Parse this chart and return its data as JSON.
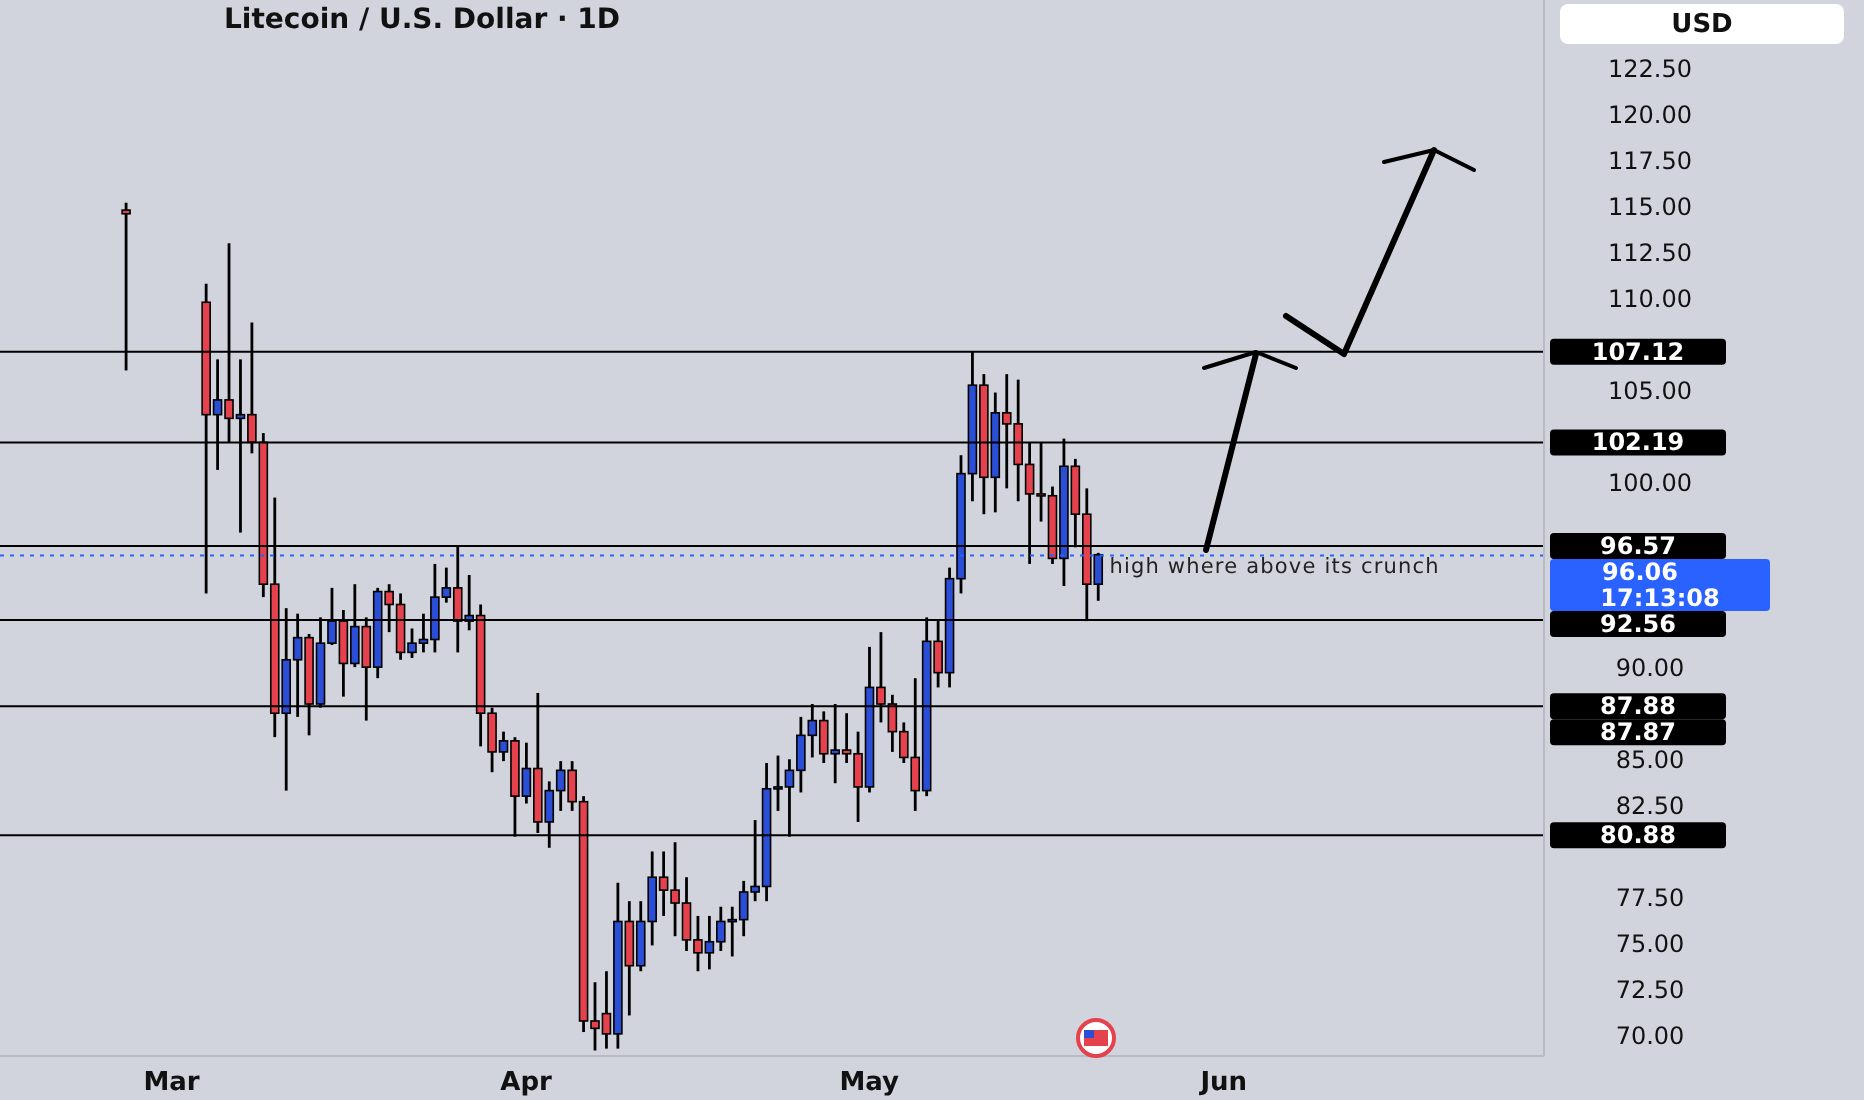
{
  "chart_data": {
    "type": "candlestick",
    "title": "Litecoin / U.S. Dollar · 1D",
    "x": [
      "--02-25",
      "--03-04",
      "--03-05",
      "--03-06",
      "--03-07",
      "--03-08",
      "--03-09",
      "--03-10",
      "--03-11",
      "--03-12",
      "--03-13",
      "--03-14",
      "--03-15",
      "--03-16",
      "--03-17",
      "--03-18",
      "--03-19",
      "--03-20",
      "--03-21",
      "--03-22",
      "--03-23",
      "--03-24",
      "--03-25",
      "--03-26",
      "--03-27",
      "--03-28",
      "--03-29",
      "--03-30",
      "--03-31",
      "--04-01",
      "--04-02",
      "--04-03",
      "--04-04",
      "--04-05",
      "--04-06",
      "--04-07",
      "--04-08",
      "--04-09",
      "--04-10",
      "--04-11",
      "--04-12",
      "--04-13",
      "--04-14",
      "--04-15",
      "--04-16",
      "--04-17",
      "--04-18",
      "--04-19",
      "--04-20",
      "--04-21",
      "--04-22",
      "--04-23",
      "--04-24",
      "--04-25",
      "--04-26",
      "--04-27",
      "--04-28",
      "--04-29",
      "--04-30",
      "--05-01",
      "--05-02",
      "--05-03",
      "--05-04",
      "--05-05",
      "--05-06",
      "--05-07",
      "--05-08",
      "--05-09",
      "--05-10",
      "--05-11",
      "--05-12",
      "--05-13",
      "--05-14",
      "--05-15",
      "--05-16",
      "--05-17",
      "--05-18",
      "--05-19",
      "--05-20",
      "--05-21"
    ],
    "ohlc": [
      [
        114.8,
        115.2,
        106.1,
        114.6
      ],
      [
        109.8,
        110.8,
        94.0,
        103.7
      ],
      [
        103.7,
        106.7,
        100.7,
        104.5
      ],
      [
        104.5,
        113.0,
        102.2,
        103.5
      ],
      [
        103.5,
        106.7,
        97.3,
        103.7
      ],
      [
        103.7,
        108.7,
        101.6,
        102.2
      ],
      [
        102.2,
        102.7,
        93.8,
        94.5
      ],
      [
        94.5,
        99.2,
        86.2,
        87.5
      ],
      [
        87.5,
        93.2,
        83.3,
        90.4
      ],
      [
        90.4,
        92.9,
        87.3,
        91.6
      ],
      [
        91.6,
        91.8,
        86.3,
        88.0
      ],
      [
        88.0,
        92.7,
        87.8,
        91.3
      ],
      [
        91.3,
        94.3,
        91.2,
        92.5
      ],
      [
        92.5,
        93.1,
        88.4,
        90.2
      ],
      [
        90.2,
        94.5,
        90.0,
        92.2
      ],
      [
        92.2,
        92.7,
        87.1,
        90.0
      ],
      [
        90.0,
        94.3,
        89.4,
        94.1
      ],
      [
        94.1,
        94.5,
        91.9,
        93.4
      ],
      [
        93.4,
        94.0,
        90.4,
        90.8
      ],
      [
        90.8,
        92.1,
        90.5,
        91.3
      ],
      [
        91.3,
        92.9,
        90.8,
        91.5
      ],
      [
        91.5,
        95.6,
        90.8,
        93.8
      ],
      [
        93.8,
        95.4,
        93.5,
        94.3
      ],
      [
        94.3,
        96.6,
        90.8,
        92.5
      ],
      [
        92.5,
        95.0,
        92.0,
        92.8
      ],
      [
        92.8,
        93.4,
        85.7,
        87.5
      ],
      [
        87.5,
        87.8,
        84.3,
        85.4
      ],
      [
        85.4,
        86.5,
        84.9,
        86.0
      ],
      [
        86.0,
        86.2,
        80.8,
        83.0
      ],
      [
        83.0,
        85.9,
        82.6,
        84.5
      ],
      [
        84.5,
        88.6,
        81.0,
        81.6
      ],
      [
        81.6,
        83.8,
        80.2,
        83.3
      ],
      [
        83.3,
        84.9,
        82.2,
        84.4
      ],
      [
        84.4,
        84.9,
        82.2,
        82.7
      ],
      [
        82.7,
        83.0,
        70.2,
        70.8
      ],
      [
        70.8,
        72.9,
        69.2,
        70.4
      ],
      [
        71.2,
        73.5,
        69.3,
        70.1
      ],
      [
        70.1,
        78.3,
        69.3,
        76.2
      ],
      [
        76.2,
        77.3,
        71.1,
        73.8
      ],
      [
        73.8,
        77.3,
        73.5,
        76.2
      ],
      [
        76.2,
        80.0,
        74.9,
        78.6
      ],
      [
        78.6,
        80.0,
        76.5,
        77.9
      ],
      [
        77.9,
        80.5,
        75.4,
        77.2
      ],
      [
        77.2,
        78.6,
        74.6,
        75.2
      ],
      [
        75.2,
        76.5,
        73.5,
        74.5
      ],
      [
        74.5,
        76.5,
        73.6,
        75.1
      ],
      [
        75.1,
        77.0,
        74.6,
        76.2
      ],
      [
        76.2,
        77.0,
        74.3,
        76.3
      ],
      [
        76.3,
        78.4,
        75.4,
        77.8
      ],
      [
        77.8,
        81.7,
        77.3,
        78.1
      ],
      [
        78.1,
        84.8,
        77.3,
        83.4
      ],
      [
        83.4,
        85.2,
        82.2,
        83.5
      ],
      [
        83.5,
        85.0,
        80.8,
        84.4
      ],
      [
        84.4,
        87.3,
        83.2,
        86.3
      ],
      [
        86.3,
        88.0,
        85.1,
        87.1
      ],
      [
        87.1,
        87.6,
        84.8,
        85.3
      ],
      [
        85.3,
        88.0,
        83.7,
        85.5
      ],
      [
        85.5,
        87.5,
        84.8,
        85.3
      ],
      [
        85.3,
        86.5,
        81.6,
        83.5
      ],
      [
        83.5,
        91.1,
        83.2,
        88.9
      ],
      [
        88.9,
        91.9,
        87.0,
        88.0
      ],
      [
        88.0,
        88.5,
        85.4,
        86.5
      ],
      [
        86.5,
        87.0,
        84.8,
        85.1
      ],
      [
        85.1,
        89.4,
        82.2,
        83.3
      ],
      [
        83.3,
        92.7,
        83.0,
        91.4
      ],
      [
        91.4,
        92.5,
        88.9,
        89.7
      ],
      [
        89.7,
        95.4,
        88.9,
        94.8
      ],
      [
        94.8,
        101.5,
        94.0,
        100.5
      ],
      [
        100.5,
        107.1,
        99.0,
        105.3
      ],
      [
        105.3,
        105.9,
        98.3,
        100.3
      ],
      [
        100.3,
        104.9,
        98.4,
        103.8
      ],
      [
        103.8,
        105.9,
        99.7,
        103.2
      ],
      [
        103.2,
        105.6,
        99.0,
        101.0
      ],
      [
        101.0,
        102.2,
        95.6,
        99.4
      ],
      [
        99.4,
        102.2,
        97.9,
        99.3
      ],
      [
        99.3,
        99.8,
        95.6,
        95.9
      ],
      [
        95.9,
        102.4,
        94.4,
        100.9
      ],
      [
        100.9,
        101.3,
        96.5,
        98.3
      ],
      [
        98.3,
        99.7,
        92.5,
        94.5
      ],
      [
        94.5,
        96.2,
        93.6,
        96.1
      ]
    ],
    "colors": [
      "#e5424d",
      "#e5424d",
      "#2a4fd6",
      "#e5424d",
      "#2a4fd6",
      "#e5424d",
      "#e5424d",
      "#e5424d",
      "#2a4fd6",
      "#2a4fd6",
      "#e5424d",
      "#2a4fd6",
      "#2a4fd6",
      "#e5424d",
      "#2a4fd6",
      "#e5424d",
      "#2a4fd6",
      "#e5424d",
      "#e5424d",
      "#2a4fd6",
      "#2a4fd6",
      "#2a4fd6",
      "#2a4fd6",
      "#e5424d",
      "#2a4fd6",
      "#e5424d",
      "#e5424d",
      "#2a4fd6",
      "#e5424d",
      "#2a4fd6",
      "#e5424d",
      "#2a4fd6",
      "#2a4fd6",
      "#e5424d",
      "#e5424d",
      "#e5424d",
      "#e5424d",
      "#2a4fd6",
      "#e5424d",
      "#2a4fd6",
      "#2a4fd6",
      "#e5424d",
      "#e5424d",
      "#e5424d",
      "#e5424d",
      "#2a4fd6",
      "#2a4fd6",
      "#2a4fd6",
      "#2a4fd6",
      "#2a4fd6",
      "#2a4fd6",
      "#2a4fd6",
      "#2a4fd6",
      "#2a4fd6",
      "#2a4fd6",
      "#e5424d",
      "#2a4fd6",
      "#e5424d",
      "#e5424d",
      "#2a4fd6",
      "#e5424d",
      "#e5424d",
      "#e5424d",
      "#e5424d",
      "#2a4fd6",
      "#e5424d",
      "#2a4fd6",
      "#2a4fd6",
      "#2a4fd6",
      "#e5424d",
      "#2a4fd6",
      "#e5424d",
      "#e5424d",
      "#e5424d",
      "#e5424d",
      "#e5424d",
      "#2a4fd6",
      "#e5424d",
      "#e5424d",
      "#2a4fd6"
    ],
    "xlim": [
      "--02-14",
      "--06-29"
    ],
    "xticks": [
      {
        "value": "--03-01",
        "label": "Mar"
      },
      {
        "value": "--04-01",
        "label": "Apr"
      },
      {
        "value": "--05-01",
        "label": "May"
      },
      {
        "value": "--06-01",
        "label": "Jun"
      }
    ],
    "ylim": [
      68.9,
      126.2
    ],
    "yticks": [
      {
        "value": 70,
        "label": "70.00"
      },
      {
        "value": 72.5,
        "label": "72.50"
      },
      {
        "value": 75,
        "label": "75.00"
      },
      {
        "value": 77.5,
        "label": "77.50"
      },
      {
        "value": 82.5,
        "label": "82.50"
      },
      {
        "value": 85,
        "label": "85.00"
      },
      {
        "value": 90,
        "label": "90.00"
      },
      {
        "value": 100,
        "label": "100.00"
      },
      {
        "value": 105,
        "label": "105.00"
      },
      {
        "value": 110,
        "label": "110.00"
      },
      {
        "value": 112.5,
        "label": "112.50"
      },
      {
        "value": 115,
        "label": "115.00"
      },
      {
        "value": 117.5,
        "label": "117.50"
      },
      {
        "value": 120,
        "label": "120.00"
      },
      {
        "value": 122.5,
        "label": "122.50"
      }
    ],
    "ref_lines": [
      {
        "axis": "y",
        "value": 107.12,
        "label": "107.12",
        "color": "#000000"
      },
      {
        "axis": "y",
        "value": 102.19,
        "label": "102.19",
        "color": "#000000"
      },
      {
        "axis": "y",
        "value": 96.57,
        "label": "96.57",
        "color": "#000000"
      },
      {
        "axis": "y",
        "value": 96.06,
        "label": "96.06",
        "color": "#2962ff",
        "line_style": "dotted"
      },
      {
        "axis": "y",
        "value": 92.56,
        "label": "92.56",
        "color": "#000000"
      },
      {
        "axis": "y",
        "value": 87.88,
        "label": "87.88",
        "color": "#000000"
      },
      {
        "axis": "y",
        "value": 80.88,
        "label": "80.88",
        "color": "#000000"
      }
    ],
    "annotations": [
      "USD",
      "17:13:08",
      {
        "text": "high where above its crunch",
        "x": "--05-22",
        "y": 96.06
      },
      "87.87"
    ]
  }
}
